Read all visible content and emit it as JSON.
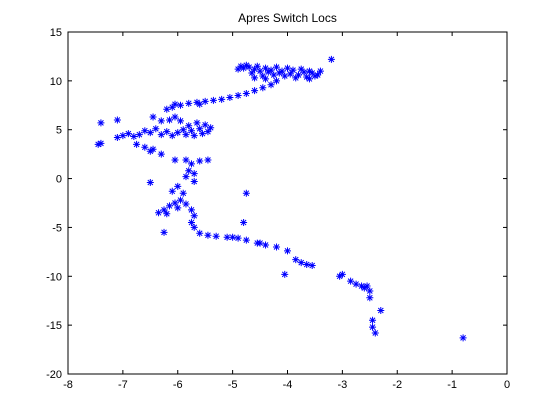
{
  "chart_data": {
    "type": "scatter",
    "title": "Apres Switch Locs",
    "xlabel": "",
    "ylabel": "",
    "xlim": [
      -8,
      0
    ],
    "ylim": [
      -20,
      15
    ],
    "grid": false,
    "marker": "asterisk",
    "colors": {
      "marker": "#0000ff",
      "axes": "#000000",
      "background": "#ffffff"
    },
    "x_ticks": [
      -8,
      -7,
      -6,
      -5,
      -4,
      -3,
      -2,
      -1,
      0
    ],
    "y_ticks": [
      -20,
      -15,
      -10,
      -5,
      0,
      5,
      10,
      15
    ],
    "series": [
      {
        "points": [
          [
            -3.2,
            12.2
          ],
          [
            -3.4,
            11.0
          ],
          [
            -3.45,
            10.6
          ],
          [
            -3.5,
            10.5
          ],
          [
            -3.55,
            10.8
          ],
          [
            -3.6,
            11.0
          ],
          [
            -3.65,
            10.4
          ],
          [
            -3.7,
            10.9
          ],
          [
            -3.75,
            11.2
          ],
          [
            -3.8,
            10.6
          ],
          [
            -3.85,
            10.3
          ],
          [
            -3.9,
            11.1
          ],
          [
            -3.95,
            10.7
          ],
          [
            -4.0,
            11.3
          ],
          [
            -4.05,
            10.5
          ],
          [
            -4.1,
            11.0
          ],
          [
            -4.15,
            10.8
          ],
          [
            -4.2,
            11.4
          ],
          [
            -4.25,
            10.6
          ],
          [
            -4.3,
            11.1
          ],
          [
            -4.35,
            10.9
          ],
          [
            -4.4,
            11.3
          ],
          [
            -4.45,
            10.5
          ],
          [
            -4.5,
            11.0
          ],
          [
            -4.55,
            11.5
          ],
          [
            -4.6,
            11.2
          ],
          [
            -4.65,
            10.8
          ],
          [
            -4.7,
            11.4
          ],
          [
            -4.75,
            11.6
          ],
          [
            -4.8,
            11.3
          ],
          [
            -4.85,
            11.5
          ],
          [
            -4.9,
            11.2
          ],
          [
            -4.6,
            10.3
          ],
          [
            -4.4,
            10.2
          ],
          [
            -4.2,
            10.0
          ],
          [
            -3.6,
            10.2
          ],
          [
            -4.3,
            9.6
          ],
          [
            -4.45,
            9.3
          ],
          [
            -4.6,
            9.0
          ],
          [
            -4.75,
            8.7
          ],
          [
            -4.9,
            8.5
          ],
          [
            -5.05,
            8.3
          ],
          [
            -5.2,
            8.1
          ],
          [
            -5.35,
            8.0
          ],
          [
            -5.5,
            7.9
          ],
          [
            -5.65,
            7.8
          ],
          [
            -5.8,
            7.7
          ],
          [
            -5.95,
            7.5
          ],
          [
            -6.1,
            7.3
          ],
          [
            -6.2,
            7.1
          ],
          [
            -6.05,
            7.6
          ],
          [
            -5.6,
            7.6
          ],
          [
            -5.4,
            5.2
          ],
          [
            -5.45,
            4.8
          ],
          [
            -5.5,
            5.5
          ],
          [
            -5.55,
            4.6
          ],
          [
            -5.6,
            5.1
          ],
          [
            -5.65,
            5.7
          ],
          [
            -5.7,
            4.4
          ],
          [
            -5.75,
            4.9
          ],
          [
            -5.8,
            5.4
          ],
          [
            -5.85,
            4.5
          ],
          [
            -5.9,
            5.0
          ],
          [
            -5.95,
            5.9
          ],
          [
            -6.0,
            4.7
          ],
          [
            -6.05,
            6.3
          ],
          [
            -6.1,
            4.4
          ],
          [
            -6.2,
            4.8
          ],
          [
            -6.3,
            4.5
          ],
          [
            -6.4,
            5.1
          ],
          [
            -6.5,
            4.7
          ],
          [
            -6.6,
            4.9
          ],
          [
            -6.7,
            4.5
          ],
          [
            -6.8,
            4.3
          ],
          [
            -6.9,
            4.6
          ],
          [
            -7.0,
            4.4
          ],
          [
            -7.1,
            4.2
          ],
          [
            -6.45,
            6.3
          ],
          [
            -6.3,
            5.9
          ],
          [
            -6.15,
            6.0
          ],
          [
            -7.1,
            6.0
          ],
          [
            -7.4,
            5.7
          ],
          [
            -7.4,
            3.6
          ],
          [
            -7.45,
            3.5
          ],
          [
            -6.75,
            3.5
          ],
          [
            -6.6,
            3.2
          ],
          [
            -6.5,
            2.8
          ],
          [
            -6.45,
            3.0
          ],
          [
            -6.3,
            2.5
          ],
          [
            -6.5,
            -0.4
          ],
          [
            -5.85,
            1.9
          ],
          [
            -5.75,
            1.5
          ],
          [
            -5.8,
            0.8
          ],
          [
            -5.85,
            0.2
          ],
          [
            -5.7,
            0.5
          ],
          [
            -5.6,
            1.8
          ],
          [
            -5.45,
            1.9
          ],
          [
            -5.7,
            -0.3
          ],
          [
            -6.05,
            1.9
          ],
          [
            -6.0,
            -0.8
          ],
          [
            -6.1,
            -1.3
          ],
          [
            -5.9,
            -1.5
          ],
          [
            -5.95,
            -2.2
          ],
          [
            -6.05,
            -2.5
          ],
          [
            -6.15,
            -2.8
          ],
          [
            -6.25,
            -3.2
          ],
          [
            -6.35,
            -3.5
          ],
          [
            -6.2,
            -3.6
          ],
          [
            -6.0,
            -3.0
          ],
          [
            -5.85,
            -2.6
          ],
          [
            -5.75,
            -3.2
          ],
          [
            -5.7,
            -3.8
          ],
          [
            -5.75,
            -4.5
          ],
          [
            -5.7,
            -5.0
          ],
          [
            -6.25,
            -5.5
          ],
          [
            -5.6,
            -5.6
          ],
          [
            -5.45,
            -5.8
          ],
          [
            -5.3,
            -5.9
          ],
          [
            -5.1,
            -6.0
          ],
          [
            -4.9,
            -6.1
          ],
          [
            -4.75,
            -6.3
          ],
          [
            -5.0,
            -6.0
          ],
          [
            -4.8,
            -4.5
          ],
          [
            -4.75,
            -1.5
          ],
          [
            -4.55,
            -6.6
          ],
          [
            -4.5,
            -6.6
          ],
          [
            -4.4,
            -6.8
          ],
          [
            -4.2,
            -7.0
          ],
          [
            -4.0,
            -7.4
          ],
          [
            -3.85,
            -8.3
          ],
          [
            -3.75,
            -8.6
          ],
          [
            -3.65,
            -8.8
          ],
          [
            -3.55,
            -8.9
          ],
          [
            -4.05,
            -9.8
          ],
          [
            -3.0,
            -9.8
          ],
          [
            -3.05,
            -10.0
          ],
          [
            -2.85,
            -10.5
          ],
          [
            -2.75,
            -10.8
          ],
          [
            -2.65,
            -11.0
          ],
          [
            -2.6,
            -11.2
          ],
          [
            -2.55,
            -11.0
          ],
          [
            -2.5,
            -11.5
          ],
          [
            -2.5,
            -12.2
          ],
          [
            -2.3,
            -13.5
          ],
          [
            -2.45,
            -14.5
          ],
          [
            -2.45,
            -15.2
          ],
          [
            -2.4,
            -15.8
          ],
          [
            -0.8,
            -16.3
          ]
        ]
      }
    ]
  }
}
